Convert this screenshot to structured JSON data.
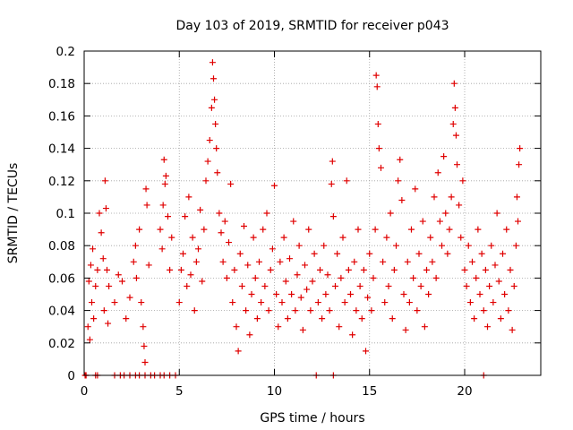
{
  "chart_data": {
    "type": "scatter",
    "title": "Day 103 of 2019, SRMTID for receiver p043",
    "xlabel": "GPS time / hours",
    "ylabel": "SRMTID / TECUs",
    "xlim": [
      0,
      24
    ],
    "ylim": [
      0,
      0.2
    ],
    "xticks": [
      0,
      5,
      10,
      15,
      20
    ],
    "yticks": [
      0,
      0.02,
      0.04,
      0.06,
      0.08,
      0.1,
      0.12,
      0.14,
      0.16,
      0.18,
      0.2
    ],
    "grid": true,
    "series": [
      {
        "name": "SRMTID",
        "marker": "+",
        "color": "#e00000",
        "points": [
          [
            0.05,
            0.0
          ],
          [
            0.1,
            0.0
          ],
          [
            0.6,
            0.0
          ],
          [
            0.7,
            0.0
          ],
          [
            1.6,
            0.0
          ],
          [
            1.9,
            0.0
          ],
          [
            2.1,
            0.0
          ],
          [
            2.4,
            0.0
          ],
          [
            2.7,
            0.0
          ],
          [
            2.9,
            0.0
          ],
          [
            3.2,
            0.0
          ],
          [
            3.5,
            0.0
          ],
          [
            3.7,
            0.0
          ],
          [
            4.0,
            0.0
          ],
          [
            4.2,
            0.0
          ],
          [
            4.5,
            0.0
          ],
          [
            4.8,
            0.0
          ],
          [
            12.2,
            0.0
          ],
          [
            13.1,
            0.0
          ],
          [
            21.0,
            0.0
          ],
          [
            0.2,
            0.03
          ],
          [
            0.25,
            0.058
          ],
          [
            0.3,
            0.022
          ],
          [
            0.35,
            0.068
          ],
          [
            0.4,
            0.045
          ],
          [
            0.45,
            0.078
          ],
          [
            0.5,
            0.035
          ],
          [
            0.6,
            0.055
          ],
          [
            0.7,
            0.065
          ],
          [
            0.8,
            0.1
          ],
          [
            0.9,
            0.088
          ],
          [
            1.0,
            0.072
          ],
          [
            1.05,
            0.04
          ],
          [
            1.1,
            0.12
          ],
          [
            1.15,
            0.103
          ],
          [
            1.2,
            0.065
          ],
          [
            1.25,
            0.032
          ],
          [
            1.3,
            0.055
          ],
          [
            1.6,
            0.045
          ],
          [
            1.8,
            0.062
          ],
          [
            2.0,
            0.058
          ],
          [
            2.2,
            0.035
          ],
          [
            2.4,
            0.048
          ],
          [
            2.6,
            0.07
          ],
          [
            2.7,
            0.08
          ],
          [
            2.75,
            0.06
          ],
          [
            2.9,
            0.09
          ],
          [
            3.0,
            0.045
          ],
          [
            3.1,
            0.03
          ],
          [
            3.15,
            0.018
          ],
          [
            3.2,
            0.008
          ],
          [
            3.25,
            0.115
          ],
          [
            3.3,
            0.105
          ],
          [
            3.4,
            0.068
          ],
          [
            4.0,
            0.09
          ],
          [
            4.1,
            0.078
          ],
          [
            4.15,
            0.105
          ],
          [
            4.2,
            0.133
          ],
          [
            4.25,
            0.118
          ],
          [
            4.3,
            0.123
          ],
          [
            4.4,
            0.098
          ],
          [
            4.5,
            0.065
          ],
          [
            4.6,
            0.085
          ],
          [
            5.0,
            0.045
          ],
          [
            5.1,
            0.065
          ],
          [
            5.2,
            0.075
          ],
          [
            5.3,
            0.098
          ],
          [
            5.4,
            0.055
          ],
          [
            5.5,
            0.11
          ],
          [
            5.6,
            0.062
          ],
          [
            5.7,
            0.085
          ],
          [
            5.8,
            0.04
          ],
          [
            5.9,
            0.07
          ],
          [
            6.0,
            0.078
          ],
          [
            6.1,
            0.102
          ],
          [
            6.2,
            0.058
          ],
          [
            6.3,
            0.09
          ],
          [
            6.4,
            0.12
          ],
          [
            6.5,
            0.132
          ],
          [
            6.6,
            0.145
          ],
          [
            6.7,
            0.165
          ],
          [
            6.75,
            0.193
          ],
          [
            6.8,
            0.183
          ],
          [
            6.85,
            0.17
          ],
          [
            6.9,
            0.155
          ],
          [
            6.95,
            0.14
          ],
          [
            7.0,
            0.125
          ],
          [
            7.1,
            0.1
          ],
          [
            7.2,
            0.088
          ],
          [
            7.3,
            0.07
          ],
          [
            7.4,
            0.095
          ],
          [
            7.5,
            0.06
          ],
          [
            7.6,
            0.082
          ],
          [
            7.7,
            0.118
          ],
          [
            7.8,
            0.045
          ],
          [
            7.9,
            0.065
          ],
          [
            8.0,
            0.03
          ],
          [
            8.1,
            0.015
          ],
          [
            8.2,
            0.075
          ],
          [
            8.3,
            0.055
          ],
          [
            8.4,
            0.092
          ],
          [
            8.5,
            0.04
          ],
          [
            8.6,
            0.068
          ],
          [
            8.7,
            0.025
          ],
          [
            8.8,
            0.05
          ],
          [
            8.9,
            0.085
          ],
          [
            9.0,
            0.06
          ],
          [
            9.1,
            0.035
          ],
          [
            9.2,
            0.07
          ],
          [
            9.3,
            0.045
          ],
          [
            9.4,
            0.09
          ],
          [
            9.5,
            0.055
          ],
          [
            9.6,
            0.1
          ],
          [
            9.7,
            0.04
          ],
          [
            9.8,
            0.065
          ],
          [
            9.9,
            0.078
          ],
          [
            10.0,
            0.117
          ],
          [
            10.1,
            0.05
          ],
          [
            10.2,
            0.03
          ],
          [
            10.3,
            0.07
          ],
          [
            10.4,
            0.045
          ],
          [
            10.5,
            0.085
          ],
          [
            10.6,
            0.058
          ],
          [
            10.7,
            0.035
          ],
          [
            10.8,
            0.072
          ],
          [
            10.9,
            0.05
          ],
          [
            11.0,
            0.095
          ],
          [
            11.1,
            0.04
          ],
          [
            11.2,
            0.062
          ],
          [
            11.3,
            0.08
          ],
          [
            11.4,
            0.048
          ],
          [
            11.5,
            0.028
          ],
          [
            11.6,
            0.068
          ],
          [
            11.7,
            0.053
          ],
          [
            11.8,
            0.09
          ],
          [
            11.9,
            0.04
          ],
          [
            12.0,
            0.058
          ],
          [
            12.1,
            0.075
          ],
          [
            12.3,
            0.045
          ],
          [
            12.4,
            0.065
          ],
          [
            12.5,
            0.035
          ],
          [
            12.6,
            0.08
          ],
          [
            12.7,
            0.05
          ],
          [
            12.8,
            0.062
          ],
          [
            12.9,
            0.04
          ],
          [
            13.0,
            0.118
          ],
          [
            13.05,
            0.132
          ],
          [
            13.1,
            0.098
          ],
          [
            13.2,
            0.055
          ],
          [
            13.3,
            0.075
          ],
          [
            13.4,
            0.03
          ],
          [
            13.5,
            0.06
          ],
          [
            13.6,
            0.085
          ],
          [
            13.7,
            0.045
          ],
          [
            13.8,
            0.12
          ],
          [
            13.9,
            0.065
          ],
          [
            14.0,
            0.05
          ],
          [
            14.1,
            0.025
          ],
          [
            14.2,
            0.07
          ],
          [
            14.3,
            0.04
          ],
          [
            14.4,
            0.09
          ],
          [
            14.5,
            0.055
          ],
          [
            14.6,
            0.035
          ],
          [
            14.7,
            0.065
          ],
          [
            14.8,
            0.015
          ],
          [
            14.9,
            0.048
          ],
          [
            15.0,
            0.075
          ],
          [
            15.1,
            0.04
          ],
          [
            15.2,
            0.06
          ],
          [
            15.3,
            0.09
          ],
          [
            15.35,
            0.185
          ],
          [
            15.4,
            0.178
          ],
          [
            15.45,
            0.155
          ],
          [
            15.5,
            0.14
          ],
          [
            15.6,
            0.128
          ],
          [
            15.7,
            0.07
          ],
          [
            15.8,
            0.045
          ],
          [
            15.9,
            0.085
          ],
          [
            16.0,
            0.055
          ],
          [
            16.1,
            0.1
          ],
          [
            16.2,
            0.035
          ],
          [
            16.3,
            0.065
          ],
          [
            16.4,
            0.08
          ],
          [
            16.5,
            0.12
          ],
          [
            16.6,
            0.133
          ],
          [
            16.7,
            0.108
          ],
          [
            16.8,
            0.05
          ],
          [
            16.9,
            0.028
          ],
          [
            17.0,
            0.07
          ],
          [
            17.1,
            0.045
          ],
          [
            17.2,
            0.09
          ],
          [
            17.3,
            0.06
          ],
          [
            17.4,
            0.115
          ],
          [
            17.5,
            0.04
          ],
          [
            17.6,
            0.075
          ],
          [
            17.7,
            0.055
          ],
          [
            17.8,
            0.095
          ],
          [
            17.9,
            0.03
          ],
          [
            18.0,
            0.065
          ],
          [
            18.1,
            0.05
          ],
          [
            18.2,
            0.085
          ],
          [
            18.3,
            0.07
          ],
          [
            18.4,
            0.11
          ],
          [
            18.5,
            0.06
          ],
          [
            18.6,
            0.125
          ],
          [
            18.7,
            0.095
          ],
          [
            18.8,
            0.08
          ],
          [
            18.9,
            0.135
          ],
          [
            19.0,
            0.1
          ],
          [
            19.1,
            0.075
          ],
          [
            19.2,
            0.09
          ],
          [
            19.3,
            0.11
          ],
          [
            19.4,
            0.155
          ],
          [
            19.45,
            0.18
          ],
          [
            19.5,
            0.165
          ],
          [
            19.55,
            0.148
          ],
          [
            19.6,
            0.13
          ],
          [
            19.7,
            0.105
          ],
          [
            19.8,
            0.085
          ],
          [
            19.9,
            0.12
          ],
          [
            20.0,
            0.065
          ],
          [
            20.1,
            0.055
          ],
          [
            20.2,
            0.08
          ],
          [
            20.3,
            0.045
          ],
          [
            20.4,
            0.07
          ],
          [
            20.5,
            0.035
          ],
          [
            20.6,
            0.06
          ],
          [
            20.7,
            0.09
          ],
          [
            20.8,
            0.05
          ],
          [
            20.9,
            0.075
          ],
          [
            21.0,
            0.04
          ],
          [
            21.1,
            0.065
          ],
          [
            21.2,
            0.03
          ],
          [
            21.3,
            0.055
          ],
          [
            21.4,
            0.08
          ],
          [
            21.5,
            0.045
          ],
          [
            21.6,
            0.068
          ],
          [
            21.7,
            0.1
          ],
          [
            21.8,
            0.058
          ],
          [
            21.9,
            0.035
          ],
          [
            22.0,
            0.075
          ],
          [
            22.1,
            0.05
          ],
          [
            22.2,
            0.09
          ],
          [
            22.3,
            0.04
          ],
          [
            22.4,
            0.065
          ],
          [
            22.5,
            0.028
          ],
          [
            22.6,
            0.055
          ],
          [
            22.7,
            0.08
          ],
          [
            22.75,
            0.11
          ],
          [
            22.8,
            0.095
          ],
          [
            22.85,
            0.13
          ],
          [
            22.9,
            0.14
          ]
        ]
      }
    ]
  }
}
